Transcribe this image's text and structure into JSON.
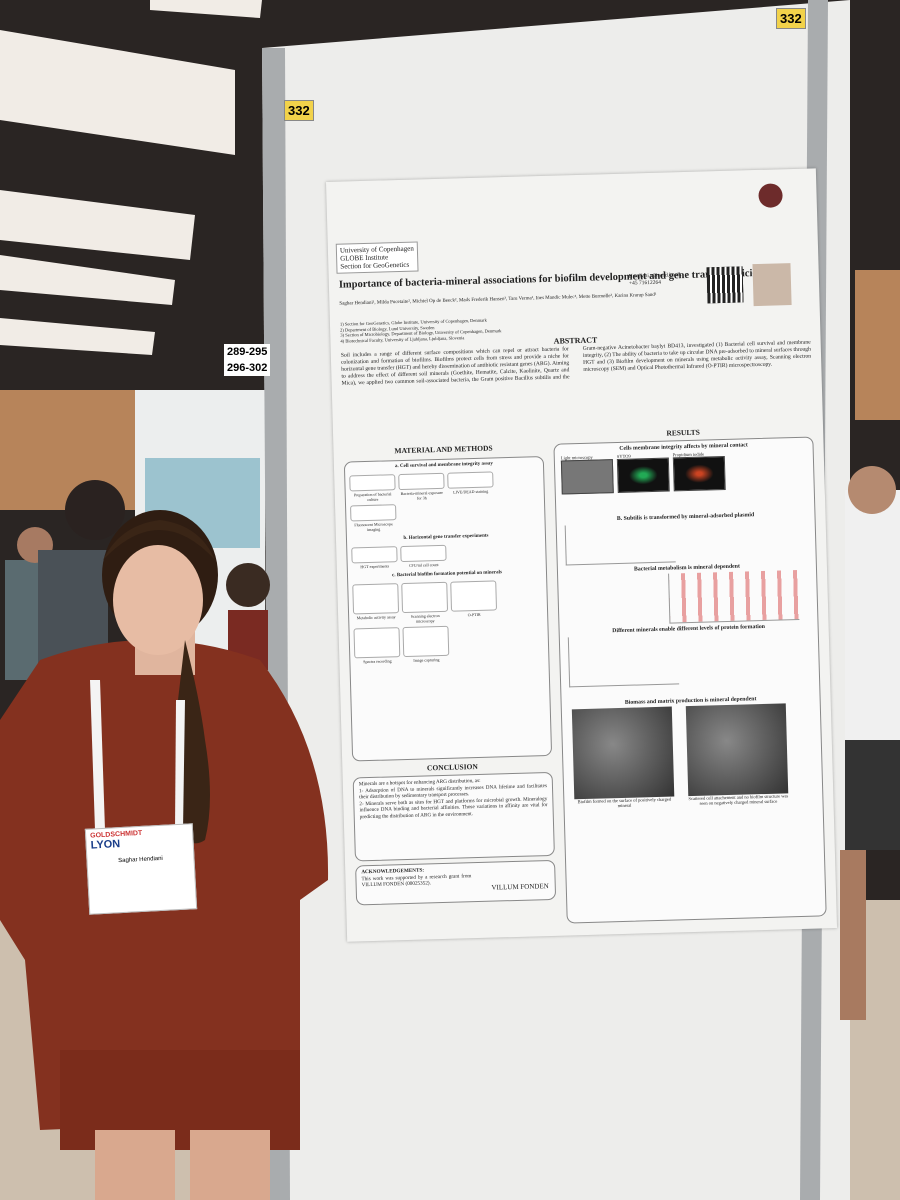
{
  "booth": {
    "number": "332",
    "neighbor": [
      "289-295",
      "296-302"
    ]
  },
  "poster": {
    "header": [
      "University of Copenhagen",
      "GLOBE Institute",
      "Section for GeoGenetics"
    ],
    "title": "Importance of bacteria-mineral associations for biofilm development and gene transfer efficiency",
    "authors": "Saghar Hendiani¹, Milda Pucetaite², Michiel Op de Beeck², Mads Frederik Hansen³, Taru Verma¹, Ines Mandic Mulec⁴, Mette Burmølle³, Karina Krarup Sand¹",
    "affiliations": [
      "1) Section for GeoGenetics, Globe Institute, University of Copenhagen, Denmark",
      "2) Department of Biology, Lund University, Sweden",
      "3) Section of Microbiology, Department of Biology, University of Copenhagen, Denmark",
      "4) Biotechnical Faculty, University of Ljubljana, Ljubljana, Slovenia"
    ],
    "contact": [
      "Hendiani.s@sund.ku.dk",
      "+45 71612264"
    ],
    "abstract": {
      "heading": "ABSTRACT",
      "text": "Soil includes a range of different surface compositions which can repel or attract bacteria for colonization and formation of biofilms. Biofilms protect cells from stress and provide a niche for horizontal gene transfer (HGT) and hereby dissemination of antibiotic resistant genes (ARG). Aiming to address the effect of different soil minerals (Goethite, Hematite, Calcite, Kaolinite, Quartz and Mica), we applied two common soil-associated bacteria, the Gram positive Bacillus subtilis and the Gram-negative Acinetobacter baylyi BD413, investigated (1) Bacterial cell survival and membrane integrity, (2) The ability of bacteria to take up circular DNA pre-adsorbed to mineral surfaces through HGT and (3) Biofilm development on minerals using metabolic activity assay, Scanning electron microscopy (SEM) and Optical Photothermal Infrared (O-PTIR) microspectroscopy."
    },
    "methods": {
      "heading": "MATERIAL AND METHODS",
      "subsections": [
        "a. Cell survival and membrane integrity assay",
        "b. Horizontal gene transfer experiments",
        "c. Bacterial biofilm formation potential on minerals"
      ],
      "steps": [
        "Preparation of bacterial culture",
        "Bacteria-mineral exposure for 3h",
        "LIVE/DEAD staining",
        "Fluorescent Microscope imaging",
        "HGT experiments",
        "CFU/ml cell count",
        "Metabolic activity assay",
        "Scanning electron microscopy",
        "O-PTIR",
        "Spectra recording",
        "Image capturing"
      ]
    },
    "conclusion": {
      "heading": "CONCLUSION",
      "lines": [
        "Minerals are a hotspot for enhancing ARG distribution, as:",
        "1- Adsorption of DNA to minerals significantly increases DNA lifetime and facilitates their distribution by sedimentary transport processes.",
        "2- Minerals serve both as sites for HGT and platforms for microbial growth. Mineralogy influence DNA binding and bacterial affinities. Those variations in affinity are vital for predicting the distribution of ARG in the environment."
      ]
    },
    "acknowledgements": {
      "heading": "ACKNOWLEDGEMENTS:",
      "text": "This work was supported by a research grant from VILLUM FONDEN (00025352).",
      "logo": "VILLUM FONDEN"
    },
    "results": {
      "heading": "RESULTS",
      "panels": [
        "Cells membrane integrity affects by mineral contact",
        "B. Subtilis is transformed by mineral-adsorbed plasmid",
        "Bacterial metabolism is mineral dependent",
        "Different minerals enable different levels of protein formation",
        "Biomass and matrix production is mineral dependent"
      ],
      "image_labels": [
        "Light microscopy",
        "SYTO9",
        "Propidium iodide"
      ],
      "captions": [
        "Biofilm formed on the surface of positively charged mineral",
        "Scattered cell attachement and no biofilm structure was seen on negatively charged mineral surface"
      ]
    }
  },
  "badge": {
    "event": "GOLDSCHMIDT",
    "city": "LYON",
    "name": "Saghar Hendiani"
  }
}
